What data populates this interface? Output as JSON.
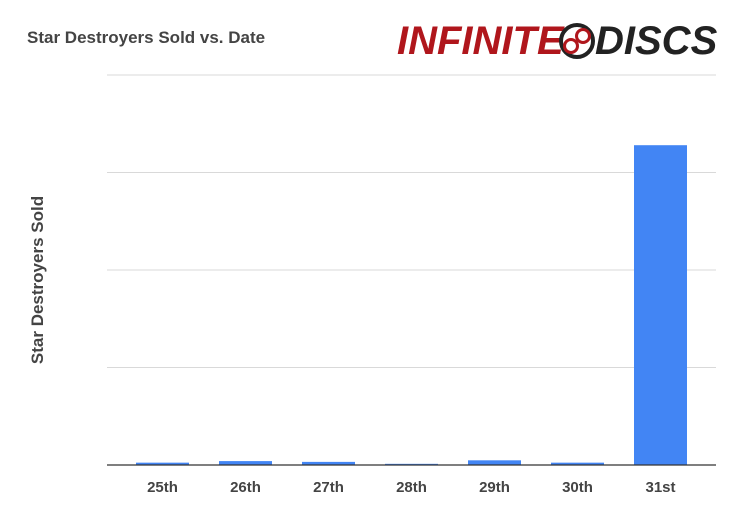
{
  "chart_data": {
    "type": "bar",
    "title": "Star Destroyers Sold vs. Date",
    "xlabel": "",
    "ylabel": "Star Destroyers Sold",
    "categories": [
      "25th",
      "26th",
      "27th",
      "28th",
      "29th",
      "30th",
      "31st"
    ],
    "values": [
      0.6,
      1.0,
      0.8,
      0.3,
      1.2,
      0.6,
      82
    ],
    "ylim": [
      0,
      100
    ],
    "grid": true,
    "legend": "none",
    "bar_color": "#4285f4",
    "y_tick_labels_visible": false
  },
  "logo": {
    "left_text": "INFINITE",
    "right_text": "DISCS",
    "colors": {
      "left": "#b0161c",
      "right": "#222222",
      "emblem": "#222222"
    }
  }
}
